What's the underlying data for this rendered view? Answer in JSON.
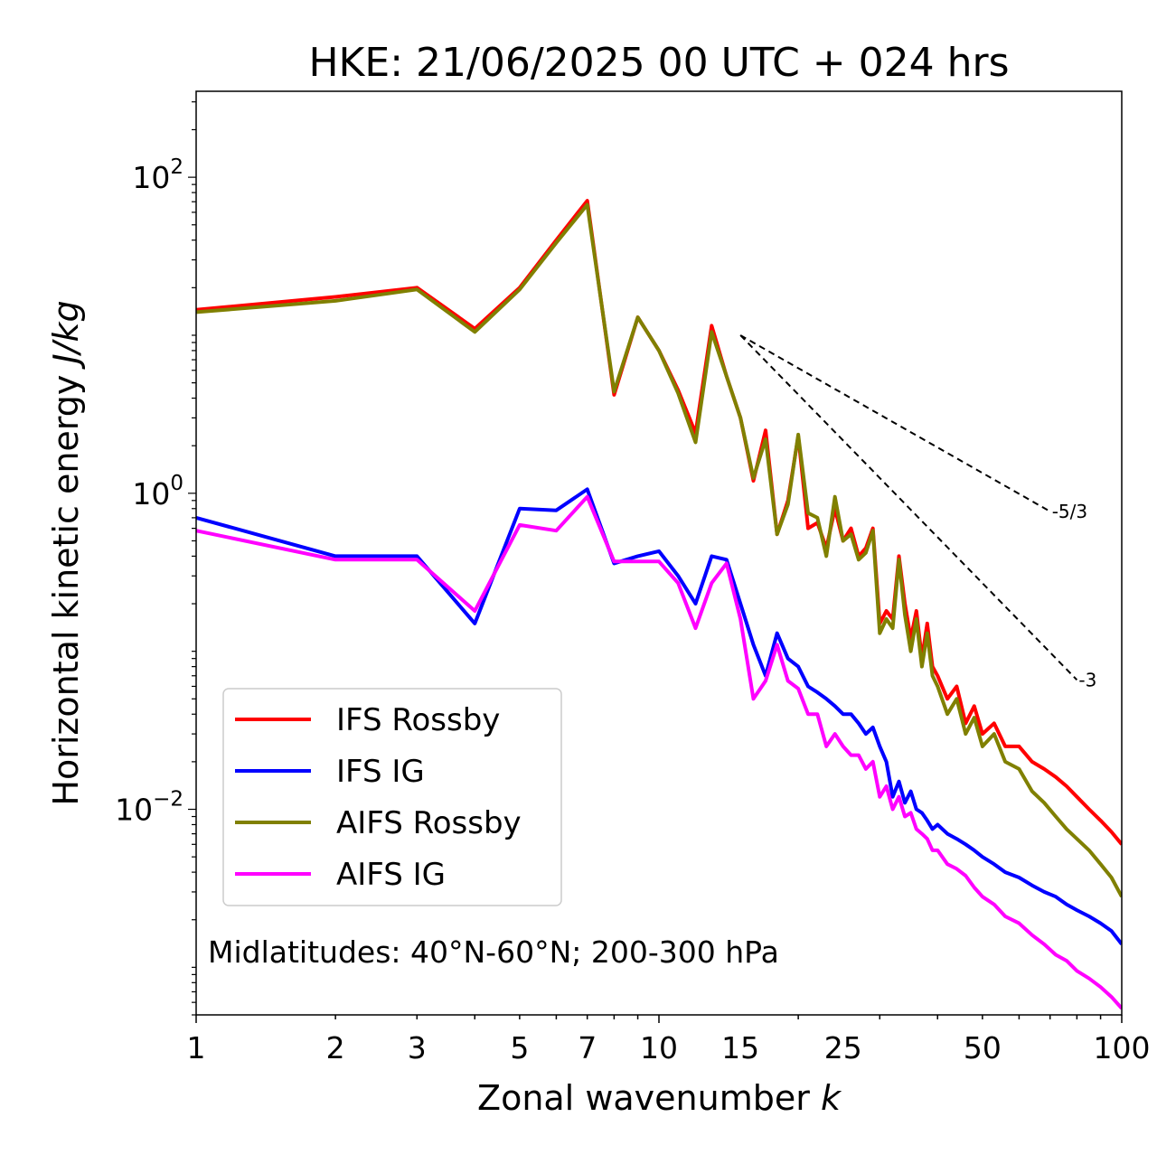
{
  "chart_data": {
    "type": "line",
    "title": "HKE: 21/06/2025 00 UTC + 024 hrs",
    "xlabel": "Zonal wavenumber",
    "xlabel_var": "k",
    "ylabel": "Horizontal kinetic energy",
    "ylabel_units": "J/kg",
    "xscale": "log",
    "yscale": "log",
    "xlim": [
      1,
      100
    ],
    "ylim": [
      0.0005,
      350
    ],
    "x_ticks": [
      1,
      2,
      3,
      5,
      7,
      10,
      15,
      25,
      50,
      100
    ],
    "x_tick_labels": [
      "1",
      "2",
      "3",
      "5",
      "7",
      "10",
      "15",
      "25",
      "50",
      "100"
    ],
    "y_ticks": [
      {
        "value": 100,
        "base": "10",
        "exp": "2"
      },
      {
        "value": 1,
        "base": "10",
        "exp": "0"
      },
      {
        "value": 0.01,
        "base": "10",
        "exp": "−2"
      }
    ],
    "annotation": "Midlatitudes: 40°N-60°N; 200-300 hPa",
    "legend_position": "lower-left",
    "slopes": [
      {
        "label": "-5/3",
        "exponent": -1.6667,
        "x_start": 15,
        "x_end": 70,
        "y_start": 10.0
      },
      {
        "label": "-3",
        "exponent": -3,
        "x_start": 15,
        "x_end": 80,
        "y_start": 10.0
      }
    ],
    "series": [
      {
        "name": "IFS Rossby",
        "color": "#ff0000",
        "x": [
          1,
          2,
          3,
          4,
          5,
          6,
          7,
          8,
          9,
          10,
          11,
          12,
          13,
          14,
          15,
          16,
          17,
          18,
          19,
          20,
          21,
          22,
          23,
          24,
          25,
          26,
          27,
          28,
          29,
          30,
          31,
          32,
          33,
          34,
          35,
          36,
          37,
          38,
          39,
          40,
          42,
          44,
          46,
          48,
          50,
          53,
          56,
          60,
          64,
          68,
          72,
          76,
          80,
          85,
          90,
          95,
          100
        ],
        "values": [
          14.5,
          17.5,
          20.0,
          11.0,
          20.0,
          40.0,
          71.0,
          4.2,
          13.0,
          8.0,
          4.5,
          2.4,
          11.5,
          5.5,
          3.0,
          1.2,
          2.5,
          0.55,
          0.9,
          2.3,
          0.6,
          0.65,
          0.45,
          0.8,
          0.5,
          0.6,
          0.4,
          0.45,
          0.6,
          0.15,
          0.18,
          0.16,
          0.4,
          0.2,
          0.12,
          0.18,
          0.09,
          0.15,
          0.08,
          0.07,
          0.05,
          0.06,
          0.035,
          0.045,
          0.03,
          0.035,
          0.025,
          0.025,
          0.02,
          0.018,
          0.016,
          0.014,
          0.012,
          0.01,
          0.0085,
          0.0072,
          0.006
        ]
      },
      {
        "name": "IFS IG",
        "color": "#0000ff",
        "x": [
          1,
          2,
          3,
          4,
          5,
          6,
          7,
          8,
          9,
          10,
          11,
          12,
          13,
          14,
          15,
          16,
          17,
          18,
          19,
          20,
          21,
          22,
          23,
          24,
          25,
          26,
          27,
          28,
          29,
          30,
          31,
          32,
          33,
          34,
          35,
          36,
          37,
          38,
          39,
          40,
          42,
          44,
          46,
          48,
          50,
          53,
          56,
          60,
          64,
          68,
          72,
          76,
          80,
          85,
          90,
          95,
          100
        ],
        "values": [
          0.7,
          0.4,
          0.4,
          0.15,
          0.8,
          0.78,
          1.06,
          0.36,
          0.4,
          0.43,
          0.3,
          0.2,
          0.4,
          0.38,
          0.2,
          0.11,
          0.07,
          0.13,
          0.09,
          0.08,
          0.06,
          0.055,
          0.05,
          0.045,
          0.04,
          0.04,
          0.035,
          0.03,
          0.033,
          0.025,
          0.02,
          0.012,
          0.015,
          0.011,
          0.013,
          0.01,
          0.0095,
          0.0085,
          0.0075,
          0.008,
          0.007,
          0.0065,
          0.006,
          0.0055,
          0.005,
          0.0045,
          0.004,
          0.0037,
          0.0033,
          0.003,
          0.0028,
          0.0025,
          0.0023,
          0.0021,
          0.0019,
          0.0017,
          0.0014
        ]
      },
      {
        "name": "AIFS Rossby",
        "color": "#808000",
        "x": [
          1,
          2,
          3,
          4,
          5,
          6,
          7,
          8,
          9,
          10,
          11,
          12,
          13,
          14,
          15,
          16,
          17,
          18,
          19,
          20,
          21,
          22,
          23,
          24,
          25,
          26,
          27,
          28,
          29,
          30,
          31,
          32,
          33,
          34,
          35,
          36,
          37,
          38,
          39,
          40,
          42,
          44,
          46,
          48,
          50,
          53,
          56,
          60,
          64,
          68,
          72,
          76,
          80,
          85,
          90,
          95,
          100
        ],
        "values": [
          14.0,
          16.5,
          19.5,
          10.5,
          19.5,
          38.5,
          67.0,
          4.4,
          13.0,
          8.0,
          4.3,
          2.1,
          10.5,
          5.5,
          3.0,
          1.25,
          2.2,
          0.55,
          0.85,
          2.35,
          0.75,
          0.7,
          0.4,
          0.95,
          0.5,
          0.55,
          0.38,
          0.42,
          0.58,
          0.13,
          0.16,
          0.14,
          0.38,
          0.17,
          0.1,
          0.16,
          0.08,
          0.13,
          0.07,
          0.06,
          0.04,
          0.05,
          0.03,
          0.038,
          0.025,
          0.03,
          0.02,
          0.018,
          0.013,
          0.011,
          0.009,
          0.0075,
          0.0065,
          0.0055,
          0.0045,
          0.0037,
          0.0028
        ]
      },
      {
        "name": "AIFS IG",
        "color": "#ff00ff",
        "x": [
          1,
          2,
          3,
          4,
          5,
          6,
          7,
          8,
          9,
          10,
          11,
          12,
          13,
          14,
          15,
          16,
          17,
          18,
          19,
          20,
          21,
          22,
          23,
          24,
          25,
          26,
          27,
          28,
          29,
          30,
          31,
          32,
          33,
          34,
          35,
          36,
          37,
          38,
          39,
          40,
          42,
          44,
          46,
          48,
          50,
          53,
          56,
          60,
          64,
          68,
          72,
          76,
          80,
          85,
          90,
          95,
          100
        ],
        "values": [
          0.58,
          0.38,
          0.38,
          0.18,
          0.63,
          0.58,
          0.95,
          0.37,
          0.37,
          0.37,
          0.27,
          0.14,
          0.27,
          0.36,
          0.16,
          0.05,
          0.065,
          0.11,
          0.065,
          0.058,
          0.04,
          0.04,
          0.025,
          0.03,
          0.025,
          0.022,
          0.022,
          0.018,
          0.02,
          0.012,
          0.014,
          0.01,
          0.012,
          0.009,
          0.0095,
          0.0075,
          0.007,
          0.0065,
          0.0055,
          0.0055,
          0.0045,
          0.0042,
          0.0038,
          0.0032,
          0.0028,
          0.0025,
          0.0021,
          0.0019,
          0.0016,
          0.0014,
          0.0012,
          0.0011,
          0.00095,
          0.00085,
          0.00075,
          0.00065,
          0.00055
        ]
      }
    ]
  }
}
